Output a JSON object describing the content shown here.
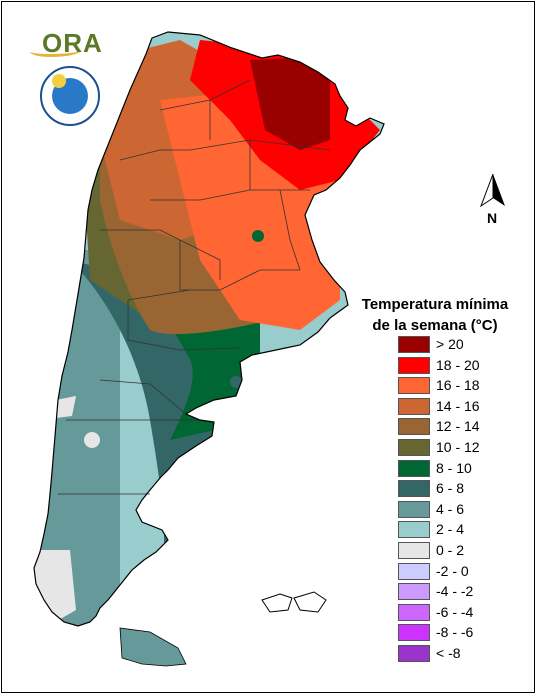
{
  "legend": {
    "title_line1": "Temperatura mínima",
    "title_line2": "de la semana (°C)",
    "items": [
      {
        "label": "> 20",
        "color": "#990000"
      },
      {
        "label": "18 - 20",
        "color": "#ff0000"
      },
      {
        "label": "16 - 18",
        "color": "#ff6633"
      },
      {
        "label": "14 - 16",
        "color": "#cc6633"
      },
      {
        "label": "12 - 14",
        "color": "#996633"
      },
      {
        "label": "10 - 12",
        "color": "#666633"
      },
      {
        "label": "8 - 10",
        "color": "#006633"
      },
      {
        "label": "6 - 8",
        "color": "#336666"
      },
      {
        "label": "4 - 6",
        "color": "#669999"
      },
      {
        "label": "2 - 4",
        "color": "#99cccc"
      },
      {
        "label": "0 - 2",
        "color": "#e6e6e6"
      },
      {
        "label": "-2 - 0",
        "color": "#ccccff"
      },
      {
        "label": "-4 - -2",
        "color": "#cc99ff"
      },
      {
        "label": "-6 - -4",
        "color": "#cc66ff"
      },
      {
        "label": "-8 - -6",
        "color": "#cc33ff"
      },
      {
        "label": "< -8",
        "color": "#9933cc"
      }
    ]
  },
  "north_arrow": {
    "label": "N"
  },
  "logo": {
    "text": "ORA"
  }
}
